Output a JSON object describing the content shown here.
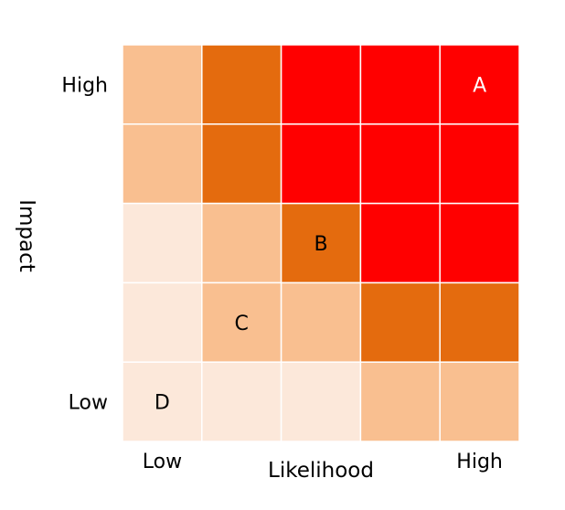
{
  "chart_data": {
    "type": "heatmap",
    "title": "",
    "xlabel": "Likelihood",
    "ylabel": "Impact",
    "x_tick_labels": [
      "Low",
      "",
      "",
      "",
      "High"
    ],
    "y_tick_labels_top_to_bottom": [
      "High",
      "",
      "",
      "",
      "Low"
    ],
    "grid": true,
    "rows_top_to_bottom": [
      [
        2,
        3,
        4,
        4,
        4
      ],
      [
        2,
        3,
        4,
        4,
        4
      ],
      [
        1,
        2,
        3,
        4,
        4
      ],
      [
        1,
        2,
        2,
        3,
        3
      ],
      [
        1,
        1,
        1,
        2,
        2
      ]
    ],
    "level_colors": {
      "1": "#fce8da",
      "2": "#f9bf90",
      "3": "#e46b0e",
      "4": "#ff0000"
    },
    "annotations": [
      {
        "label": "A",
        "x": 5,
        "y": 5,
        "color": "#ffffff"
      },
      {
        "label": "B",
        "x": 3,
        "y": 3,
        "color": "#000000"
      },
      {
        "label": "C",
        "x": 2,
        "y": 2,
        "color": "#000000"
      },
      {
        "label": "D",
        "x": 1,
        "y": 1,
        "color": "#000000"
      }
    ]
  }
}
